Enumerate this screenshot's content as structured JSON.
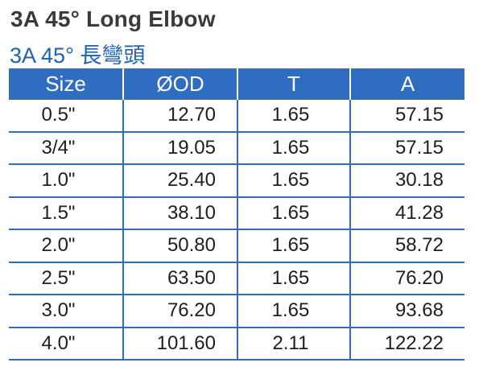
{
  "title": "3A 45° Long Elbow",
  "subtitle": "3A 45° 長彎頭",
  "colors": {
    "header_bg": "#2e6dbf",
    "grid_line": "#2f6db6",
    "title_text": "#3a3a3a",
    "subtitle_text": "#1c64b3"
  },
  "table": {
    "headers": [
      "Size",
      "ØOD",
      "T",
      "A"
    ],
    "rows": [
      [
        "0.5\"",
        "12.70",
        "1.65",
        "57.15"
      ],
      [
        "3/4\"",
        "19.05",
        "1.65",
        "57.15"
      ],
      [
        "1.0\"",
        "25.40",
        "1.65",
        "30.18"
      ],
      [
        "1.5\"",
        "38.10",
        "1.65",
        "41.28"
      ],
      [
        "2.0\"",
        "50.80",
        "1.65",
        "58.72"
      ],
      [
        "2.5\"",
        "63.50",
        "1.65",
        "76.20"
      ],
      [
        "3.0\"",
        "76.20",
        "1.65",
        "93.68"
      ],
      [
        "4.0\"",
        "101.60",
        "2.11",
        "122.22"
      ]
    ]
  }
}
